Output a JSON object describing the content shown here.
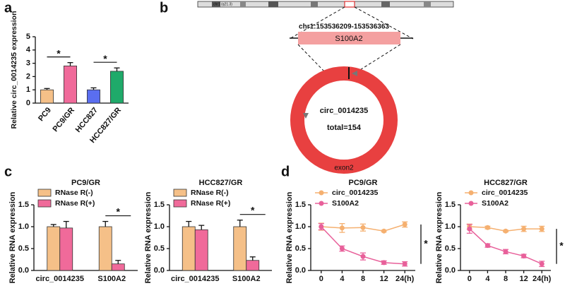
{
  "panel_labels": [
    "a",
    "b",
    "c",
    "d"
  ],
  "diagram": {
    "chromosome": "chr1 (q21.3)",
    "locus": "chr1:153536209-153536363",
    "gene": "S100A2",
    "circ": "circ_0014235",
    "total": "total=154",
    "exon": "exon2"
  },
  "chart_data": [
    {
      "type": "bar",
      "ylabel": "Relative circ_0014235 expression",
      "categories": [
        "PC9",
        "PC9/GR",
        "HCC827",
        "HCC827/GR"
      ],
      "values": [
        1.0,
        2.8,
        1.0,
        2.4
      ],
      "errors": [
        0.1,
        0.25,
        0.15,
        0.25
      ],
      "colors": [
        "#f5c088",
        "#f06a9a",
        "#5a6ef0",
        "#1faa6a"
      ],
      "ylim": [
        0,
        5
      ],
      "yticks": [
        0,
        1,
        2,
        3,
        4,
        5
      ],
      "annotations": [
        "*",
        "*"
      ]
    },
    {
      "type": "grouped_bar",
      "title": "PC9/GR",
      "ylabel": "Relative RNA expression",
      "categories": [
        "circ_0014235",
        "S100A2"
      ],
      "series": [
        {
          "name": "RNase R(-)",
          "color": "#f5c088",
          "values": [
            1.0,
            1.0
          ],
          "errors": [
            0.05,
            0.12
          ]
        },
        {
          "name": "RNase R(+)",
          "color": "#f06a9a",
          "values": [
            0.97,
            0.15
          ],
          "errors": [
            0.15,
            0.08
          ]
        }
      ],
      "ylim": [
        0,
        1.5
      ],
      "yticks": [
        {
          "value": 0,
          "label": "0.0"
        },
        {
          "value": 0.5,
          "label": "0.5"
        },
        {
          "value": 1,
          "label": "1.0"
        },
        {
          "value": 1.5,
          "label": "1.5"
        }
      ],
      "annotations": [
        "*"
      ]
    },
    {
      "type": "grouped_bar",
      "title": "HCC827/GR",
      "ylabel": "Relative RNA expression",
      "categories": [
        "circ_0014235",
        "S100A2"
      ],
      "series": [
        {
          "name": "RNase R(-)",
          "color": "#f5c088",
          "values": [
            1.0,
            1.0
          ],
          "errors": [
            0.12,
            0.15
          ]
        },
        {
          "name": "RNase R(+)",
          "color": "#f06a9a",
          "values": [
            0.93,
            0.23
          ],
          "errors": [
            0.1,
            0.08
          ]
        }
      ],
      "ylim": [
        0,
        1.5
      ],
      "yticks": [
        {
          "value": 0,
          "label": "0.0"
        },
        {
          "value": 0.5,
          "label": "0.5"
        },
        {
          "value": 1,
          "label": "1.0"
        },
        {
          "value": 1.5,
          "label": "1.5"
        }
      ],
      "annotations": [
        "*"
      ]
    },
    {
      "type": "line",
      "title": "PC9/GR",
      "ylabel": "Relative RNA expression",
      "categories": [
        "0",
        "4",
        "8",
        "12",
        "24(h)"
      ],
      "series": [
        {
          "name": "circ_0014235",
          "color": "#f5b070",
          "values": [
            1.0,
            0.97,
            0.98,
            0.9,
            1.05
          ],
          "errors": [
            0.08,
            0.1,
            0.08,
            0.02,
            0.06
          ]
        },
        {
          "name": "S100A2",
          "color": "#e8609a",
          "values": [
            1.0,
            0.5,
            0.32,
            0.18,
            0.15
          ],
          "errors": [
            0.07,
            0.06,
            0.08,
            0.04,
            0.05
          ]
        }
      ],
      "ylim": [
        0,
        1.5
      ],
      "yticks": [
        {
          "value": 0,
          "label": "0.0"
        },
        {
          "value": 0.5,
          "label": "0.5"
        },
        {
          "value": 1,
          "label": "1.0"
        },
        {
          "value": 1.5,
          "label": "1.5"
        }
      ],
      "annotations": [
        "*"
      ]
    },
    {
      "type": "line",
      "title": "HCC827/GR",
      "ylabel": "Relative RNA expression",
      "categories": [
        "0",
        "4",
        "8",
        "12",
        "24(h)"
      ],
      "series": [
        {
          "name": "circ_0014235",
          "color": "#f5b070",
          "values": [
            1.0,
            0.98,
            0.9,
            0.95,
            0.95
          ],
          "errors": [
            0.06,
            0.03,
            0.02,
            0.06,
            0.06
          ]
        },
        {
          "name": "S100A2",
          "color": "#e8609a",
          "values": [
            0.95,
            0.57,
            0.43,
            0.33,
            0.15
          ],
          "errors": [
            0.1,
            0.04,
            0.05,
            0.04,
            0.06
          ]
        }
      ],
      "ylim": [
        0,
        1.5
      ],
      "yticks": [
        {
          "value": 0,
          "label": "0.0"
        },
        {
          "value": 0.5,
          "label": "0.5"
        },
        {
          "value": 1,
          "label": "1.0"
        },
        {
          "value": 1.5,
          "label": "1.5"
        }
      ],
      "annotations": [
        "*"
      ]
    }
  ]
}
